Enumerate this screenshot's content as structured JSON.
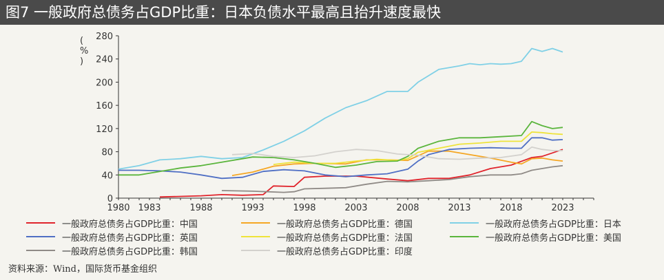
{
  "title": "图7  一般政府总债务占GDP比重：日本负债水平最高且抬升速度最快",
  "source": "资料来源：Wind，国际货币基金组织",
  "chart_data": {
    "type": "line",
    "unit_label": "%",
    "xlim": [
      1980,
      2026
    ],
    "ylim": [
      0,
      280
    ],
    "x_ticks": [
      1980,
      1983,
      1988,
      1993,
      1998,
      2003,
      2008,
      2013,
      2018,
      2023
    ],
    "y_ticks": [
      0,
      40,
      80,
      120,
      160,
      200,
      240,
      280
    ],
    "series": [
      {
        "name": "一般政府总债务占GDP比重：中国",
        "color": "#e0232b",
        "points": [
          [
            1984,
            2
          ],
          [
            1986,
            3
          ],
          [
            1988,
            4
          ],
          [
            1990,
            6
          ],
          [
            1992,
            5
          ],
          [
            1994,
            6
          ],
          [
            1995,
            21
          ],
          [
            1997,
            20
          ],
          [
            1998,
            36
          ],
          [
            2000,
            38
          ],
          [
            2003,
            38
          ],
          [
            2006,
            33
          ],
          [
            2008,
            30
          ],
          [
            2010,
            34
          ],
          [
            2012,
            34
          ],
          [
            2014,
            40
          ],
          [
            2016,
            51
          ],
          [
            2018,
            57
          ],
          [
            2020,
            70
          ],
          [
            2021,
            72
          ],
          [
            2022,
            78
          ],
          [
            2023,
            84
          ]
        ]
      },
      {
        "name": "一般政府总债务占GDP比重：德国",
        "color": "#f5a623",
        "points": [
          [
            1991,
            39
          ],
          [
            1993,
            45
          ],
          [
            1995,
            55
          ],
          [
            1997,
            59
          ],
          [
            1999,
            60
          ],
          [
            2002,
            59
          ],
          [
            2004,
            66
          ],
          [
            2006,
            66
          ],
          [
            2008,
            65
          ],
          [
            2010,
            81
          ],
          [
            2012,
            81
          ],
          [
            2014,
            75
          ],
          [
            2016,
            69
          ],
          [
            2018,
            62
          ],
          [
            2019,
            59
          ],
          [
            2020,
            68
          ],
          [
            2021,
            69
          ],
          [
            2022,
            66
          ],
          [
            2023,
            64
          ]
        ]
      },
      {
        "name": "一般政府总债务占GDP比重：日本",
        "color": "#7fd0e6",
        "points": [
          [
            1980,
            50
          ],
          [
            1982,
            56
          ],
          [
            1984,
            66
          ],
          [
            1986,
            68
          ],
          [
            1988,
            72
          ],
          [
            1990,
            68
          ],
          [
            1992,
            70
          ],
          [
            1994,
            83
          ],
          [
            1996,
            98
          ],
          [
            1998,
            116
          ],
          [
            2000,
            138
          ],
          [
            2002,
            156
          ],
          [
            2004,
            168
          ],
          [
            2006,
            184
          ],
          [
            2008,
            184
          ],
          [
            2009,
            200
          ],
          [
            2011,
            222
          ],
          [
            2013,
            228
          ],
          [
            2014,
            232
          ],
          [
            2015,
            230
          ],
          [
            2016,
            232
          ],
          [
            2017,
            231
          ],
          [
            2018,
            232
          ],
          [
            2019,
            236
          ],
          [
            2020,
            258
          ],
          [
            2021,
            253
          ],
          [
            2022,
            258
          ],
          [
            2023,
            252
          ]
        ]
      },
      {
        "name": "一般政府总债务占GDP比重：英国",
        "color": "#4f6fc4",
        "points": [
          [
            1980,
            48
          ],
          [
            1982,
            48
          ],
          [
            1984,
            47
          ],
          [
            1986,
            45
          ],
          [
            1988,
            40
          ],
          [
            1990,
            34
          ],
          [
            1992,
            36
          ],
          [
            1994,
            46
          ],
          [
            1996,
            49
          ],
          [
            1998,
            47
          ],
          [
            2000,
            40
          ],
          [
            2002,
            37
          ],
          [
            2004,
            40
          ],
          [
            2006,
            42
          ],
          [
            2008,
            50
          ],
          [
            2009,
            64
          ],
          [
            2010,
            75
          ],
          [
            2012,
            84
          ],
          [
            2014,
            86
          ],
          [
            2016,
            87
          ],
          [
            2018,
            86
          ],
          [
            2019,
            86
          ],
          [
            2020,
            104
          ],
          [
            2021,
            104
          ],
          [
            2022,
            100
          ],
          [
            2023,
            101
          ]
        ]
      },
      {
        "name": "一般政府总债务占GDP比重：法国",
        "color": "#eee33a",
        "points": [
          [
            1995,
            58
          ],
          [
            1997,
            62
          ],
          [
            1999,
            60
          ],
          [
            2001,
            60
          ],
          [
            2003,
            64
          ],
          [
            2005,
            67
          ],
          [
            2007,
            65
          ],
          [
            2008,
            68
          ],
          [
            2009,
            79
          ],
          [
            2011,
            86
          ],
          [
            2013,
            93
          ],
          [
            2015,
            95
          ],
          [
            2017,
            98
          ],
          [
            2019,
            98
          ],
          [
            2020,
            114
          ],
          [
            2021,
            113
          ],
          [
            2022,
            111
          ],
          [
            2023,
            110
          ]
        ]
      },
      {
        "name": "一般政府总债务占GDP比重：美国",
        "color": "#5ab53c",
        "points": [
          [
            1980,
            40
          ],
          [
            1982,
            40
          ],
          [
            1984,
            46
          ],
          [
            1986,
            52
          ],
          [
            1988,
            56
          ],
          [
            1990,
            62
          ],
          [
            1992,
            68
          ],
          [
            1993,
            71
          ],
          [
            1995,
            70
          ],
          [
            1997,
            66
          ],
          [
            1999,
            60
          ],
          [
            2001,
            53
          ],
          [
            2003,
            57
          ],
          [
            2005,
            63
          ],
          [
            2007,
            64
          ],
          [
            2008,
            72
          ],
          [
            2009,
            86
          ],
          [
            2011,
            98
          ],
          [
            2013,
            104
          ],
          [
            2015,
            104
          ],
          [
            2017,
            106
          ],
          [
            2019,
            108
          ],
          [
            2020,
            132
          ],
          [
            2021,
            125
          ],
          [
            2022,
            120
          ],
          [
            2023,
            122
          ]
        ]
      },
      {
        "name": "一般政府总债务占GDP比重：韩国",
        "color": "#8f8a86",
        "points": [
          [
            1990,
            13
          ],
          [
            1993,
            12
          ],
          [
            1996,
            10
          ],
          [
            1997,
            11
          ],
          [
            1998,
            16
          ],
          [
            2000,
            17
          ],
          [
            2002,
            18
          ],
          [
            2004,
            24
          ],
          [
            2006,
            29
          ],
          [
            2008,
            28
          ],
          [
            2010,
            30
          ],
          [
            2012,
            32
          ],
          [
            2014,
            37
          ],
          [
            2016,
            40
          ],
          [
            2018,
            40
          ],
          [
            2019,
            42
          ],
          [
            2020,
            48
          ],
          [
            2021,
            51
          ],
          [
            2022,
            54
          ],
          [
            2023,
            56
          ]
        ]
      },
      {
        "name": "一般政府总债务占GDP比重：印度",
        "color": "#d3d1cd",
        "points": [
          [
            1991,
            75
          ],
          [
            1993,
            77
          ],
          [
            1995,
            72
          ],
          [
            1997,
            70
          ],
          [
            1999,
            73
          ],
          [
            2001,
            80
          ],
          [
            2003,
            84
          ],
          [
            2005,
            82
          ],
          [
            2007,
            76
          ],
          [
            2009,
            74
          ],
          [
            2011,
            68
          ],
          [
            2013,
            67
          ],
          [
            2015,
            69
          ],
          [
            2017,
            70
          ],
          [
            2019,
            75
          ],
          [
            2020,
            88
          ],
          [
            2021,
            84
          ],
          [
            2022,
            82
          ],
          [
            2023,
            82
          ]
        ]
      }
    ]
  }
}
